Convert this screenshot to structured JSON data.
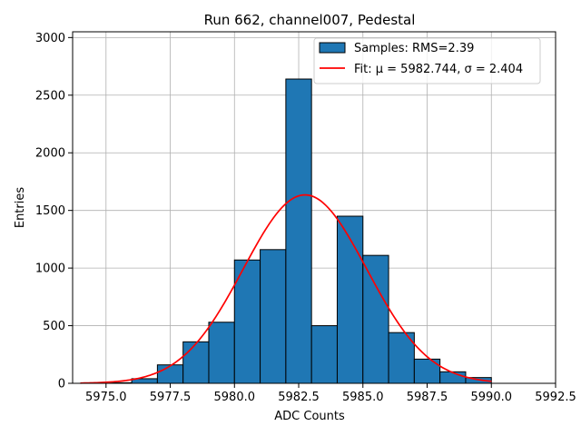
{
  "chart_data": {
    "type": "bar",
    "title": "Run 662, channel007, Pedestal",
    "xlabel": "ADC Counts",
    "ylabel": "Entries",
    "xlim": [
      5973.7,
      5992.5
    ],
    "ylim": [
      0,
      3050
    ],
    "xticks": [
      5975.0,
      5977.5,
      5980.0,
      5982.5,
      5985.0,
      5987.5,
      5990.0,
      5992.5
    ],
    "xtick_labels": [
      "5975.0",
      "5977.5",
      "5980.0",
      "5982.5",
      "5985.0",
      "5987.5",
      "5990.0",
      "5992.5"
    ],
    "yticks": [
      0,
      500,
      1000,
      1500,
      2000,
      2500,
      3000
    ],
    "ytick_labels": [
      "0",
      "500",
      "1000",
      "1500",
      "2000",
      "2500",
      "3000"
    ],
    "grid": true,
    "legend_position": "top-right",
    "histogram": {
      "name": "Samples: RMS=2.39",
      "color": "#1f77b4",
      "edge_color": "#000000",
      "bin_edges": [
        5975.0,
        5976.0,
        5977.0,
        5978.0,
        5979.0,
        5980.0,
        5981.0,
        5982.0,
        5983.0,
        5984.0,
        5985.0,
        5986.0,
        5987.0,
        5988.0,
        5989.0,
        5990.0
      ],
      "counts": [
        5,
        40,
        160,
        360,
        530,
        1070,
        1160,
        2640,
        500,
        1450,
        1110,
        440,
        210,
        100,
        50
      ]
    },
    "fit": {
      "name": "Fit: μ = 5982.744, σ = 2.404",
      "color": "#ff0000",
      "mu": 5982.744,
      "sigma": 2.404,
      "amplitude": 1635,
      "x_range": [
        5974.0,
        5990.0
      ]
    }
  }
}
